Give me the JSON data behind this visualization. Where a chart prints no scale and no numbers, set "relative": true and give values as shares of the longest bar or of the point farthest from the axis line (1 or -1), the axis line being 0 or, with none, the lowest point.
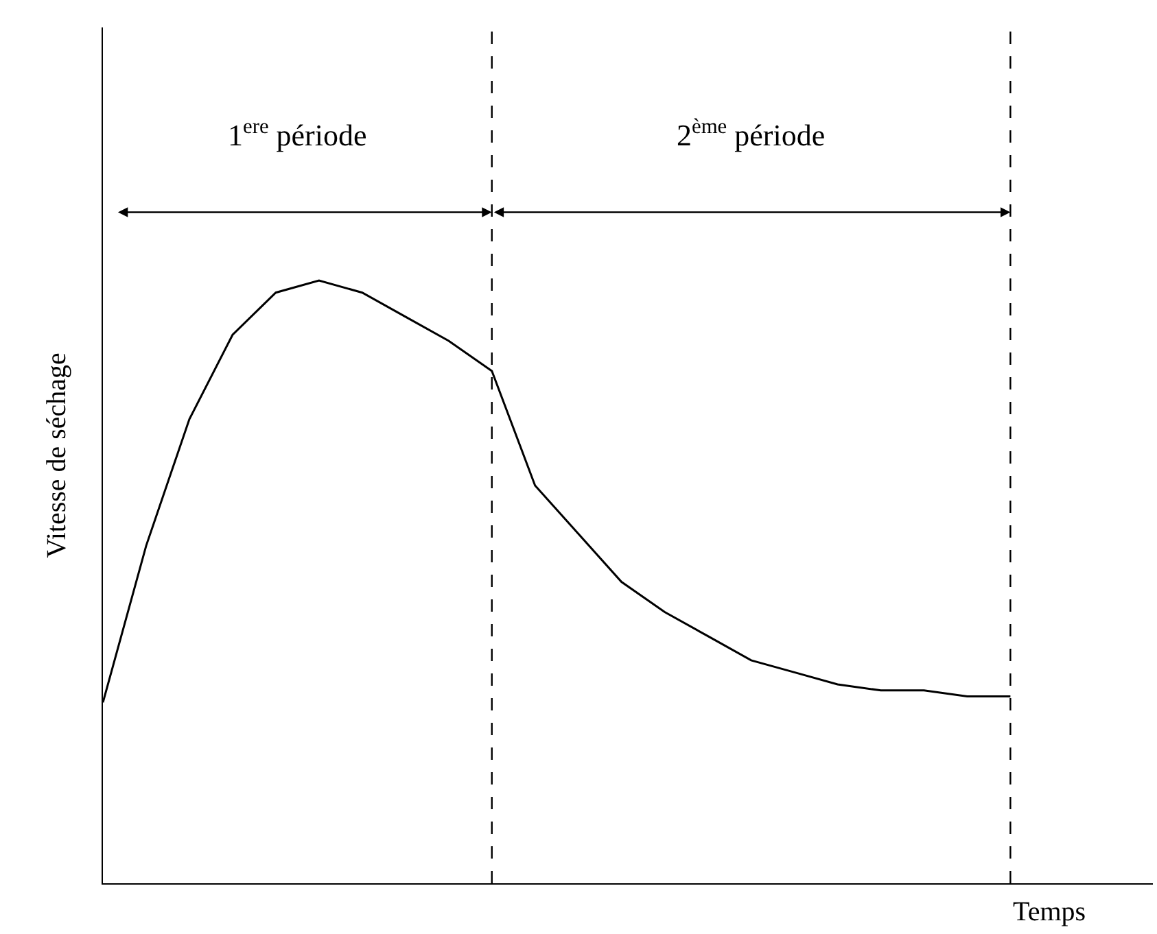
{
  "chart_data": {
    "type": "line",
    "relative": true,
    "xlabel": "Temps",
    "ylabel": "Vitesse de séchage",
    "categories": [
      null,
      null,
      null,
      null,
      null,
      null,
      null,
      null,
      null,
      null,
      null,
      null,
      null,
      null,
      null,
      null,
      null,
      null,
      null,
      null,
      null,
      null
    ],
    "series": [
      {
        "color": "#000000",
        "values": [
          0.3,
          0.56,
          0.77,
          0.91,
          0.98,
          1,
          0.98,
          0.94,
          0.9,
          0.85,
          0.66,
          0.58,
          0.5,
          0.45,
          0.41,
          0.37,
          0.35,
          0.33,
          0.32,
          0.32,
          0.31,
          0.31
        ]
      }
    ],
    "annotations": [
      "1$^{ere}$ période",
      "2$^{ème}$ période"
    ],
    "marker": "none",
    "line_style": "solid"
  }
}
